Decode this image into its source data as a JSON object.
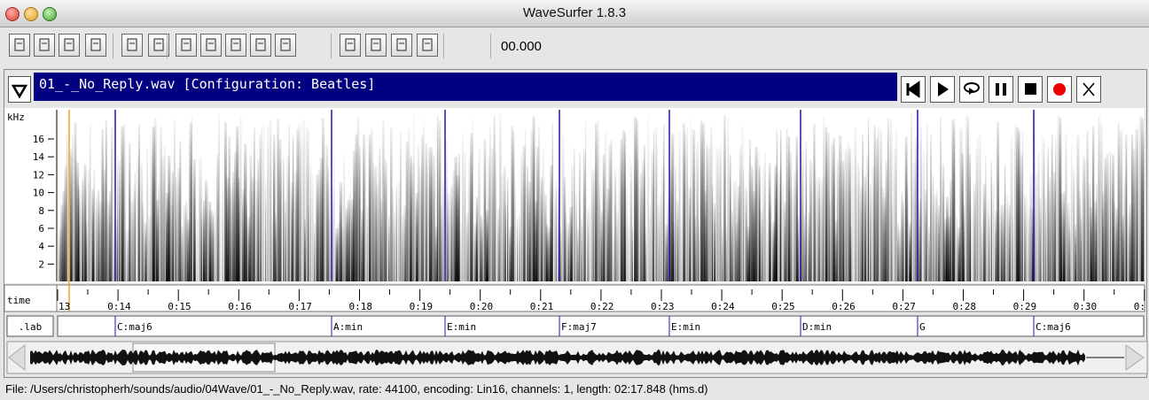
{
  "window": {
    "title": "WaveSurfer 1.8.3"
  },
  "toolbar": {
    "time": "00.000"
  },
  "pane": {
    "title": "01_-_No_Reply.wav [Configuration: Beatles]"
  },
  "spectrogram": {
    "unit": "kHz",
    "ticks": [
      "16",
      "14",
      "12",
      "10",
      "8",
      "6",
      "4",
      "2"
    ]
  },
  "timeline": {
    "label": "time",
    "ticks": [
      "13",
      "0:14",
      "0:15",
      "0:16",
      "0:17",
      "0:18",
      "0:19",
      "0:20",
      "0:21",
      "0:22",
      "0:23",
      "0:24",
      "0:25",
      "0:26",
      "0:27",
      "0:28",
      "0:29",
      "0:30",
      "0:"
    ]
  },
  "labels": {
    "name": ".lab",
    "items": [
      "C:maj6",
      "A:min",
      "E:min",
      "F:maj7",
      "E:min",
      "D:min",
      "G",
      "C:maj6"
    ]
  },
  "status": "File: /Users/christopherh/sounds/audio/04Wave/01_-_No_Reply.wav, rate: 44100, encoding: Lin16, channels: 1, length: 02:17.848 (hms.d)"
}
